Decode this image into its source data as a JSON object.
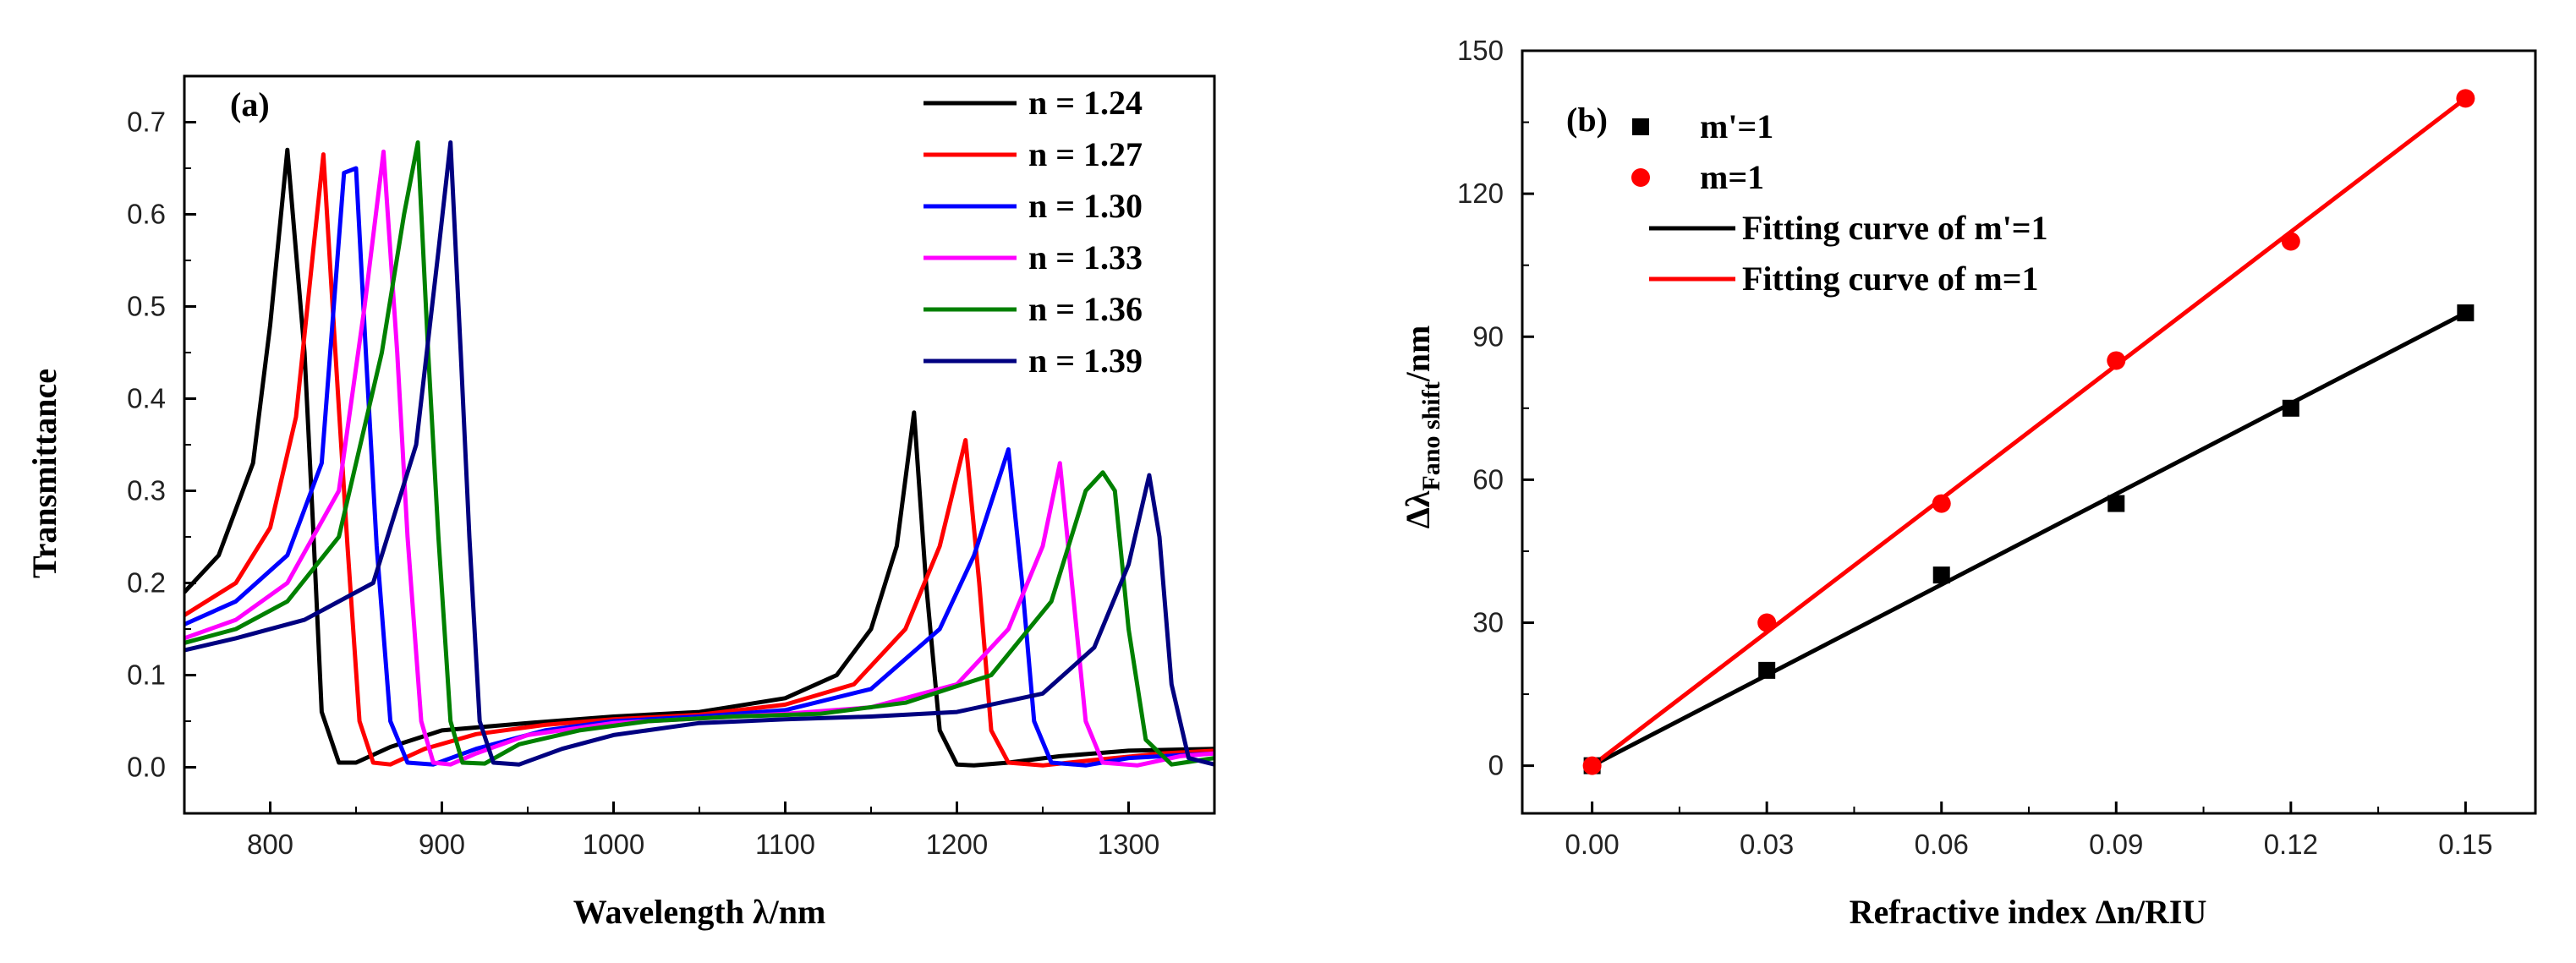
{
  "chart_data": [
    {
      "type": "line",
      "panel_label": "(a)",
      "xlabel": "Wavelength λ/nm",
      "ylabel": "Transmittance",
      "xlim": [
        750,
        1350
      ],
      "ylim": [
        -0.05,
        0.75
      ],
      "xticks": [
        "800",
        "900",
        "1000",
        "1100",
        "1200",
        "1300"
      ],
      "yticks": [
        "0.0",
        "0.1",
        "0.2",
        "0.3",
        "0.4",
        "0.5",
        "0.6",
        "0.7"
      ],
      "legend_position": "top-right",
      "series": [
        {
          "name": "n = 1.24",
          "color": "#000000",
          "x": [
            750,
            770,
            790,
            800,
            810,
            820,
            825,
            830,
            840,
            850,
            870,
            900,
            950,
            1000,
            1050,
            1100,
            1130,
            1150,
            1165,
            1175,
            1182,
            1190,
            1200,
            1210,
            1230,
            1260,
            1300,
            1350
          ],
          "y": [
            0.19,
            0.23,
            0.33,
            0.48,
            0.67,
            0.45,
            0.26,
            0.06,
            0.005,
            0.005,
            0.022,
            0.04,
            0.048,
            0.055,
            0.06,
            0.075,
            0.1,
            0.15,
            0.24,
            0.385,
            0.2,
            0.04,
            0.003,
            0.002,
            0.005,
            0.012,
            0.018,
            0.02
          ]
        },
        {
          "name": "n = 1.27",
          "color": "#ff0000",
          "x": [
            750,
            780,
            800,
            815,
            825,
            831,
            838,
            845,
            852,
            860,
            870,
            890,
            920,
            960,
            1000,
            1050,
            1100,
            1140,
            1170,
            1190,
            1205,
            1213,
            1220,
            1230,
            1250,
            1280,
            1320,
            1350
          ],
          "y": [
            0.165,
            0.2,
            0.26,
            0.38,
            0.56,
            0.665,
            0.45,
            0.24,
            0.05,
            0.005,
            0.003,
            0.02,
            0.036,
            0.046,
            0.052,
            0.057,
            0.068,
            0.09,
            0.15,
            0.24,
            0.355,
            0.2,
            0.04,
            0.005,
            0.002,
            0.008,
            0.015,
            0.018
          ]
        },
        {
          "name": "n = 1.30",
          "color": "#0000ff",
          "x": [
            750,
            780,
            810,
            830,
            843,
            850,
            856,
            862,
            870,
            880,
            895,
            920,
            960,
            1000,
            1050,
            1100,
            1150,
            1190,
            1210,
            1230,
            1238,
            1245,
            1255,
            1275,
            1300,
            1350
          ],
          "y": [
            0.155,
            0.18,
            0.23,
            0.33,
            0.645,
            0.65,
            0.44,
            0.24,
            0.05,
            0.005,
            0.003,
            0.02,
            0.04,
            0.05,
            0.055,
            0.062,
            0.085,
            0.15,
            0.23,
            0.345,
            0.2,
            0.05,
            0.005,
            0.002,
            0.01,
            0.015
          ]
        },
        {
          "name": "n = 1.33",
          "color": "#ff00ff",
          "x": [
            750,
            780,
            810,
            840,
            855,
            866,
            874,
            880,
            888,
            895,
            905,
            920,
            950,
            1000,
            1050,
            1100,
            1150,
            1200,
            1230,
            1250,
            1260,
            1267,
            1275,
            1285,
            1305,
            1330,
            1350
          ],
          "y": [
            0.14,
            0.16,
            0.2,
            0.3,
            0.5,
            0.668,
            0.45,
            0.25,
            0.05,
            0.005,
            0.003,
            0.015,
            0.035,
            0.048,
            0.053,
            0.058,
            0.065,
            0.09,
            0.15,
            0.24,
            0.33,
            0.2,
            0.05,
            0.005,
            0.002,
            0.012,
            0.015
          ]
        },
        {
          "name": "n = 1.36",
          "color": "#008000",
          "x": [
            750,
            780,
            810,
            840,
            865,
            878,
            886,
            892,
            898,
            905,
            912,
            925,
            945,
            980,
            1020,
            1070,
            1120,
            1170,
            1220,
            1255,
            1275,
            1285,
            1292,
            1300,
            1310,
            1325,
            1350
          ],
          "y": [
            0.135,
            0.15,
            0.18,
            0.25,
            0.45,
            0.6,
            0.678,
            0.45,
            0.25,
            0.05,
            0.005,
            0.004,
            0.025,
            0.04,
            0.05,
            0.055,
            0.058,
            0.07,
            0.1,
            0.18,
            0.3,
            0.32,
            0.3,
            0.15,
            0.03,
            0.003,
            0.01
          ]
        },
        {
          "name": "n = 1.39",
          "color": "#000080",
          "x": [
            750,
            780,
            820,
            860,
            885,
            898,
            905,
            911,
            916,
            922,
            930,
            945,
            970,
            1000,
            1050,
            1100,
            1150,
            1200,
            1250,
            1280,
            1300,
            1312,
            1318,
            1325,
            1335,
            1350
          ],
          "y": [
            0.127,
            0.14,
            0.16,
            0.2,
            0.35,
            0.56,
            0.678,
            0.45,
            0.25,
            0.05,
            0.005,
            0.003,
            0.02,
            0.035,
            0.048,
            0.052,
            0.055,
            0.06,
            0.08,
            0.13,
            0.22,
            0.317,
            0.25,
            0.09,
            0.01,
            0.003
          ]
        }
      ]
    },
    {
      "type": "scatter",
      "panel_label": "(b)",
      "xlabel": "Refractive index Δn/RIU",
      "ylabel_main": "Δλ",
      "ylabel_sub": "Fano shift",
      "ylabel_unit": "/nm",
      "xlim": [
        -0.012,
        0.162
      ],
      "ylim": [
        -10,
        150
      ],
      "xticks": [
        "0.00",
        "0.03",
        "0.06",
        "0.09",
        "0.12",
        "0.15"
      ],
      "yticks": [
        "0",
        "30",
        "60",
        "90",
        "120",
        "150"
      ],
      "legend_position": "top-left",
      "series": [
        {
          "name": "m'=1",
          "kind": "points",
          "marker": "square",
          "color": "#000000",
          "x": [
            0,
            0.03,
            0.06,
            0.09,
            0.12,
            0.15
          ],
          "y": [
            0,
            20,
            40,
            55,
            75,
            95
          ]
        },
        {
          "name": "m=1",
          "kind": "points",
          "marker": "circle",
          "color": "#ff0000",
          "x": [
            0,
            0.03,
            0.06,
            0.09,
            0.12,
            0.15
          ],
          "y": [
            0,
            30,
            55,
            85,
            110,
            140
          ]
        },
        {
          "name": "Fitting curve of m'=1",
          "kind": "line",
          "color": "#000000",
          "x": [
            0,
            0.15
          ],
          "y": [
            0,
            95
          ]
        },
        {
          "name": "Fitting curve of m=1",
          "kind": "line",
          "color": "#ff0000",
          "x": [
            0,
            0.15
          ],
          "y": [
            0,
            140
          ]
        }
      ]
    }
  ]
}
